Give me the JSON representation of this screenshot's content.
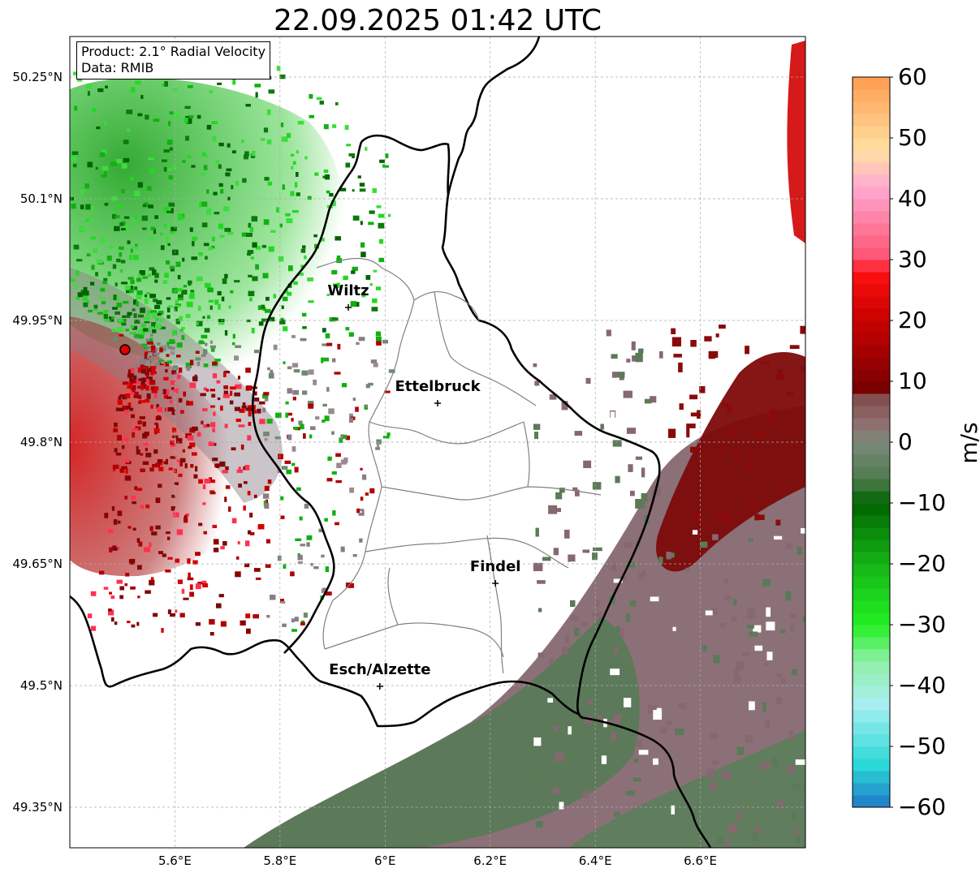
{
  "title": "22.09.2025 01:42 UTC",
  "info": {
    "product": "Product: 2.1° Radial Velocity",
    "data": "Data: RMIB"
  },
  "map": {
    "lat_ticks": [
      {
        "value": 50.25,
        "label": "50.25°N"
      },
      {
        "value": 50.1,
        "label": "50.1°N"
      },
      {
        "value": 49.95,
        "label": "49.95°N"
      },
      {
        "value": 49.8,
        "label": "49.8°N"
      },
      {
        "value": 49.65,
        "label": "49.65°N"
      },
      {
        "value": 49.5,
        "label": "49.5°N"
      },
      {
        "value": 49.35,
        "label": "49.35°N"
      }
    ],
    "lon_ticks": [
      {
        "value": 5.6,
        "label": "5.6°E"
      },
      {
        "value": 5.8,
        "label": "5.8°E"
      },
      {
        "value": 6.0,
        "label": "6°E"
      },
      {
        "value": 6.2,
        "label": "6.2°E"
      },
      {
        "value": 6.4,
        "label": "6.4°E"
      },
      {
        "value": 6.6,
        "label": "6.6°E"
      }
    ],
    "extent": {
      "lon_min": 5.4,
      "lon_max": 6.8,
      "lat_min": 49.3,
      "lat_max": 50.3
    },
    "cities": [
      {
        "name": "Wiltz",
        "lon": 5.93,
        "lat": 49.966
      },
      {
        "name": "Ettelbruck",
        "lon": 6.1,
        "lat": 49.848
      },
      {
        "name": "Findel",
        "lon": 6.21,
        "lat": 49.626
      },
      {
        "name": "Esch/Alzette",
        "lon": 5.99,
        "lat": 49.499
      }
    ],
    "radar_site": {
      "lon": 5.505,
      "lat": 49.914
    },
    "grid": true
  },
  "colorbar": {
    "unit": "m/s",
    "ticks": [
      60,
      50,
      40,
      30,
      20,
      10,
      0,
      -10,
      -20,
      -30,
      -40,
      -50,
      -60
    ],
    "tick_labels": [
      "60",
      "50",
      "40",
      "30",
      "20",
      "10",
      "0",
      "−10",
      "−20",
      "−30",
      "−40",
      "−50",
      "−60"
    ],
    "range": [
      -60,
      60
    ],
    "stops": [
      {
        "v": -60,
        "c": "#1f78c8"
      },
      {
        "v": -53,
        "c": "#2bd8d8"
      },
      {
        "v": -43,
        "c": "#a8eef0"
      },
      {
        "v": -36,
        "c": "#8ff0a8"
      },
      {
        "v": -30,
        "c": "#22f022"
      },
      {
        "v": -20,
        "c": "#16b416"
      },
      {
        "v": -10,
        "c": "#006400"
      },
      {
        "v": -6,
        "c": "#4f7a4f"
      },
      {
        "v": 0,
        "c": "#7a8a7a"
      },
      {
        "v": 3,
        "c": "#8e7070"
      },
      {
        "v": 8,
        "c": "#804848"
      },
      {
        "v": 9,
        "c": "#7a0000"
      },
      {
        "v": 20,
        "c": "#c80000"
      },
      {
        "v": 28,
        "c": "#ff1010"
      },
      {
        "v": 30,
        "c": "#ff5070"
      },
      {
        "v": 42,
        "c": "#ffaad2"
      },
      {
        "v": 48,
        "c": "#ffe0a0"
      },
      {
        "v": 60,
        "c": "#ff9a50"
      }
    ]
  }
}
